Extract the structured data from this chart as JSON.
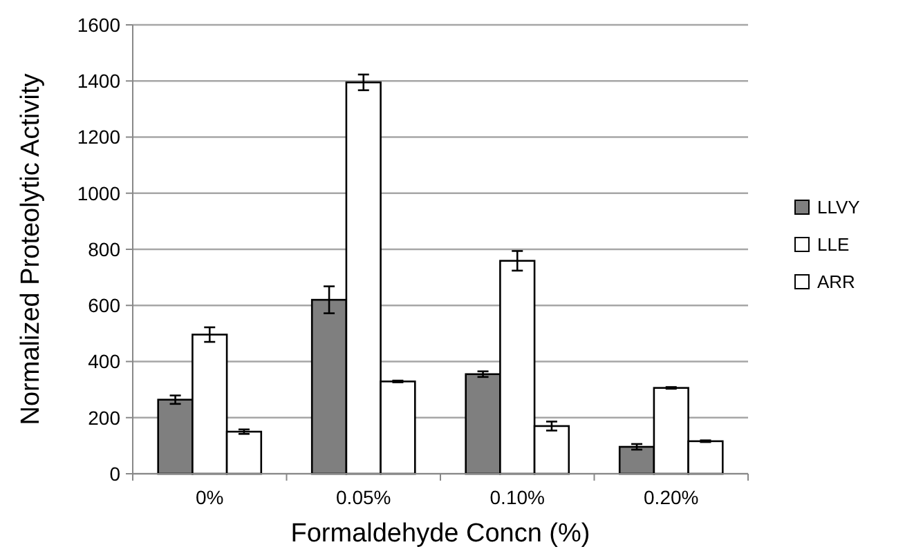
{
  "chart_data": {
    "type": "bar",
    "xlabel": "Formaldehyde Concn (%)",
    "ylabel": "Normalized Proteolytic Activity",
    "categories": [
      "0%",
      "0.05%",
      "0.10%",
      "0.20%"
    ],
    "series": [
      {
        "name": "LLVY",
        "color": "#7f7f7f",
        "values": [
          264,
          620,
          355,
          96
        ],
        "errors": [
          15,
          48,
          10,
          10
        ]
      },
      {
        "name": "LLE",
        "color": "#ffffff",
        "values": [
          496,
          1395,
          759,
          306
        ],
        "errors": [
          26,
          28,
          35,
          3
        ]
      },
      {
        "name": "ARR",
        "color": "#ffffff",
        "values": [
          150,
          329,
          170,
          116
        ],
        "errors": [
          8,
          3,
          16,
          3
        ]
      }
    ],
    "ylim": [
      0,
      1600
    ],
    "yticks": [
      0,
      200,
      400,
      600,
      800,
      1000,
      1200,
      1400,
      1600
    ],
    "grid": "y",
    "legend": "right"
  }
}
